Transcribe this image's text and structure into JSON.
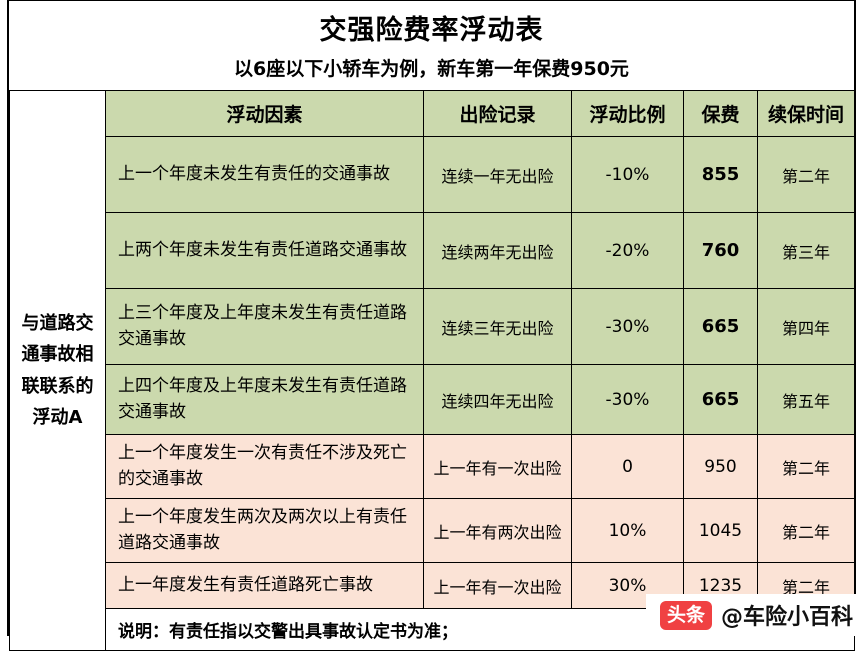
{
  "title": "交强险费率浮动表",
  "subtitle": "以6座以下小轿车为例，新车第一年保费950元",
  "row_group_label": "与道路交通事故相联联系的浮动A",
  "chart_data": {
    "type": "table",
    "columns": [
      "浮动因素",
      "出险记录",
      "浮动比例",
      "保费",
      "续保时间"
    ],
    "rows": [
      {
        "factor": "上一个年度未发生有责任的交通事故",
        "record": "连续一年无出险",
        "ratio": "-10%",
        "premium": "855",
        "renewal": "第二年",
        "tone": "green"
      },
      {
        "factor": "上两个年度未发生有责任道路交通事故",
        "record": "连续两年无出险",
        "ratio": "-20%",
        "premium": "760",
        "renewal": "第三年",
        "tone": "green"
      },
      {
        "factor": "上三个年度及上年度未发生有责任道路交通事故",
        "record": "连续三年无出险",
        "ratio": "-30%",
        "premium": "665",
        "renewal": "第四年",
        "tone": "green"
      },
      {
        "factor": "上四个年度及上年度未发生有责任道路交通事故",
        "record": "连续四年无出险",
        "ratio": "-30%",
        "premium": "665",
        "renewal": "第五年",
        "tone": "green"
      },
      {
        "factor": "上一个年度发生一次有责任不涉及死亡的交通事故",
        "record": "上一年有一次出险",
        "ratio": "0",
        "premium": "950",
        "renewal": "第二年",
        "tone": "pink"
      },
      {
        "factor": "上一个年度发生两次及两次以上有责任道路交通事故",
        "record": "上一年有两次出险",
        "ratio": "10%",
        "premium": "1045",
        "renewal": "第二年",
        "tone": "pink"
      },
      {
        "factor": "上一年度发生有责任道路死亡事故",
        "record": "上一年有一次出险",
        "ratio": "30%",
        "premium": "1235",
        "renewal": "第二年",
        "tone": "pink"
      }
    ],
    "base_premium_note": "新车第一年保费950元"
  },
  "note": "说明：有责任指以交警出具事故认定书为准；",
  "watermark": {
    "badge": "头条",
    "handle": "@车险小百科"
  },
  "colors": {
    "green": "#cbd9ad",
    "pink": "#fbe3d6",
    "badge_red": "#f04142"
  }
}
